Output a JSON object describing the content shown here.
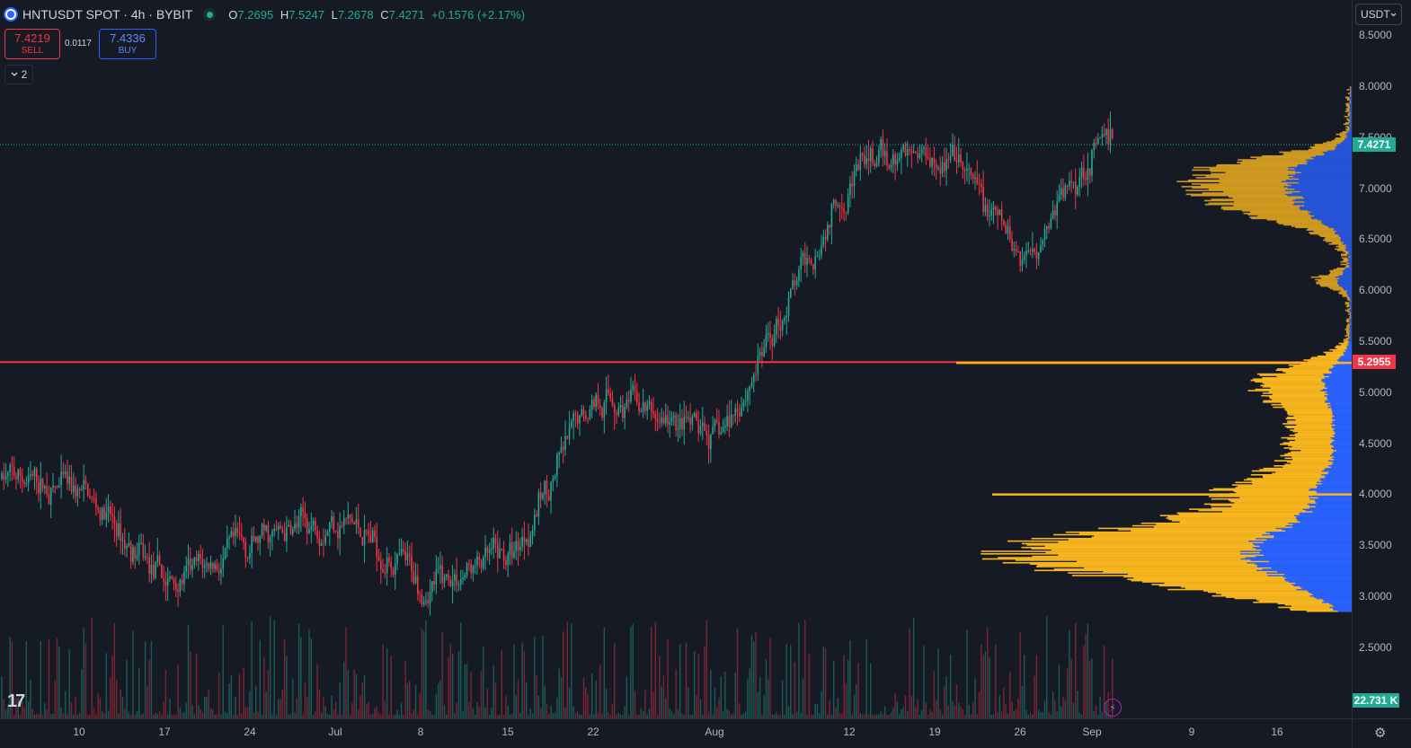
{
  "header": {
    "title": "HNTUSDT SPOT · 4h · BYBIT",
    "ohlc": [
      {
        "k": "O",
        "v": "7.2695"
      },
      {
        "k": "H",
        "v": "7.5247"
      },
      {
        "k": "L",
        "v": "7.2678"
      },
      {
        "k": "C",
        "v": "7.4271"
      }
    ],
    "change": "+0.1576 (+2.17%)"
  },
  "trade": {
    "sell_price": "7.4219",
    "sell_label": "SELL",
    "spread": "0.0117",
    "buy_price": "7.4336",
    "buy_label": "BUY"
  },
  "indicators_toggle": {
    "count": "2"
  },
  "currency_select": {
    "value": "USDT"
  },
  "price_axis": {
    "ticks": [
      "8.5000",
      "8.0000",
      "7.5000",
      "7.0000",
      "6.5000",
      "6.0000",
      "5.5000",
      "5.0000",
      "4.5000",
      "4.0000",
      "3.5000",
      "3.0000",
      "2.5000"
    ],
    "tick_values": [
      8.5,
      8.0,
      7.5,
      7.0,
      6.5,
      6.0,
      5.5,
      5.0,
      4.5,
      4.0,
      3.5,
      3.0,
      2.5
    ],
    "last_price_label": "7.4271",
    "last_price": 7.4271,
    "hline_label": "5.2955",
    "hline_price": 5.2955,
    "volume_label": "22.731 K"
  },
  "time_axis": {
    "labels": [
      "10",
      "17",
      "24",
      "Jul",
      "8",
      "15",
      "22",
      "Aug",
      "12",
      "19",
      "26",
      "Sep",
      "9",
      "16"
    ]
  },
  "chart_data": {
    "type": "candlestick",
    "title": "HNTUSDT SPOT · 4h · BYBIT",
    "y_range": [
      2.1,
      8.7
    ],
    "x_labels": [
      "10",
      "17",
      "24",
      "Jul",
      "8",
      "15",
      "22",
      "Aug",
      "12",
      "19",
      "26",
      "Sep",
      "9",
      "16"
    ],
    "close_trajectory": [
      {
        "x": "10",
        "y": 4.0
      },
      {
        "x": "17",
        "y": 3.1
      },
      {
        "x": "24",
        "y": 3.5
      },
      {
        "x": "Jul",
        "y": 3.8
      },
      {
        "x": "8",
        "y": 3.1
      },
      {
        "x": "15",
        "y": 3.4
      },
      {
        "x": "22",
        "y": 5.0
      },
      {
        "x": "Aug",
        "y": 4.5
      },
      {
        "x": "12",
        "y": 7.2
      },
      {
        "x": "19",
        "y": 7.4
      },
      {
        "x": "26",
        "y": 6.3
      },
      {
        "x": "Sep",
        "y": 7.4271
      }
    ],
    "horizontal_line": 5.2955,
    "last_price": 7.4271,
    "colors": {
      "up": "#22ab94",
      "down": "#f23645",
      "hline": "#f23645",
      "vp_up": "#2962ff",
      "vp_down": "#f7b51e",
      "background": "#161a25"
    }
  },
  "icons": {
    "logo": "tradingview-logo",
    "bolt": "lightning-icon",
    "settings": "gear-icon"
  },
  "logo_text": "17",
  "bolt_glyph": "⚡",
  "settings_glyph": "⚙"
}
